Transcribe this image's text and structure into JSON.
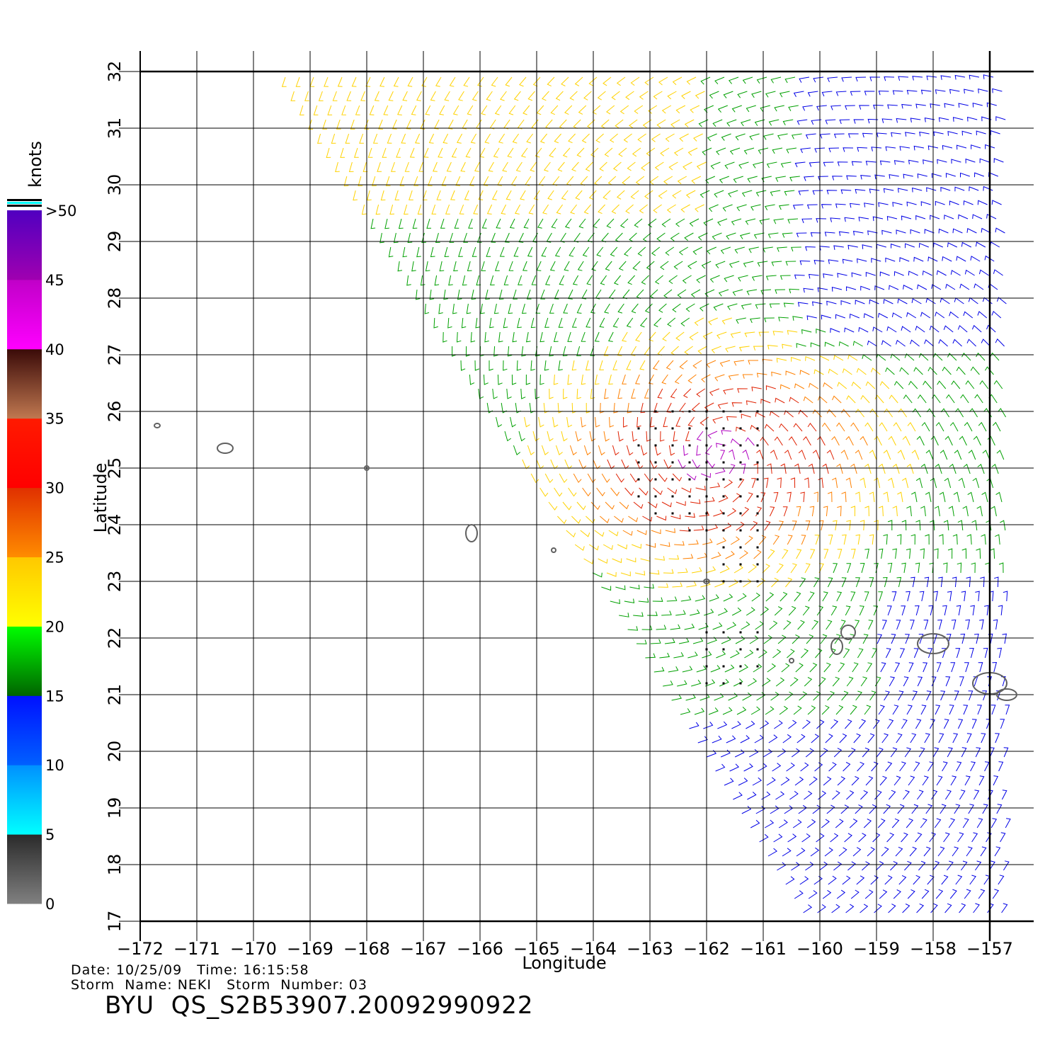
{
  "map": {
    "lat_ticks": [
      "17",
      "18",
      "19",
      "20",
      "21",
      "22",
      "23",
      "24",
      "25",
      "26",
      "27",
      "28",
      "29",
      "30",
      "31",
      "32"
    ],
    "lon_ticks": [
      "−172",
      "−171",
      "−170",
      "−169",
      "−168",
      "−167",
      "−166",
      "−165",
      "−164",
      "−163",
      "−162",
      "−161",
      "−160",
      "−159",
      "−158",
      "−157"
    ],
    "lon_range": [
      -172,
      -156.6
    ],
    "lat_range": [
      17,
      32
    ],
    "xlabel": "Longitude",
    "ylabel": "Latitude",
    "storm_center": [
      -161.8,
      25.2
    ]
  },
  "colorbar": {
    "unit_label": "knots",
    "labels": [
      "0",
      "5",
      "10",
      "15",
      "20",
      "25",
      "30",
      "35",
      "40",
      "45",
      ">50"
    ],
    "bins": [
      {
        "from": 0,
        "to": 5,
        "colors": [
          "#808080",
          "#2a2a2a"
        ]
      },
      {
        "from": 5,
        "to": 10,
        "colors": [
          "#00ffff",
          "#0090ff"
        ]
      },
      {
        "from": 10,
        "to": 15,
        "colors": [
          "#0060ff",
          "#0010ff"
        ]
      },
      {
        "from": 15,
        "to": 20,
        "colors": [
          "#006400",
          "#00ff00"
        ]
      },
      {
        "from": 20,
        "to": 25,
        "colors": [
          "#ffff00",
          "#ffc800"
        ]
      },
      {
        "from": 25,
        "to": 30,
        "colors": [
          "#ff8c00",
          "#e03000"
        ]
      },
      {
        "from": 30,
        "to": 35,
        "colors": [
          "#ff0000",
          "#ff1a00"
        ]
      },
      {
        "from": 35,
        "to": 40,
        "colors": [
          "#c07850",
          "#3a0a08"
        ]
      },
      {
        "from": 40,
        "to": 45,
        "colors": [
          "#ff00ff",
          "#c000c8"
        ]
      },
      {
        "from": 45,
        "to": 50,
        "colors": [
          "#a000b0",
          "#5000c0"
        ]
      }
    ]
  },
  "wind_colors": {
    "blue": "#0000e6",
    "green": "#00a000",
    "yellow": "#ffd200",
    "orange": "#ff8000",
    "red": "#e02000",
    "purple": "#b000c0",
    "rain_flag": "#000000",
    "land": "#606060"
  },
  "info": {
    "date_line": "Date: 10/25/09   Time: 16:15:58",
    "storm_line": "Storm  Name: NEKI   Storm  Number: 03",
    "product_id": "BYU  QS_S2B53907.20092990922"
  }
}
